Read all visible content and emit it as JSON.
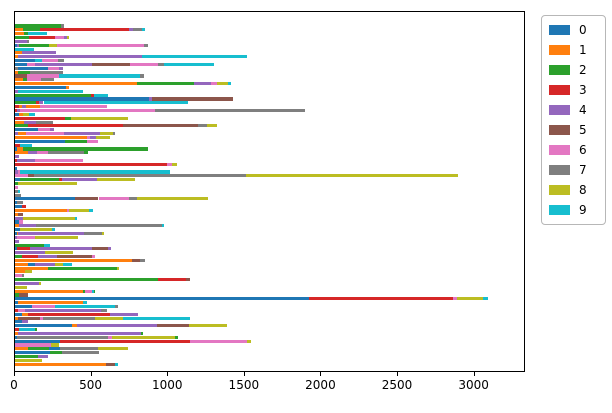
{
  "chart_data": {
    "type": "bar",
    "orientation": "horizontal",
    "stacked": true,
    "title": "",
    "xlabel": "",
    "ylabel": "",
    "grid": false,
    "xlim": [
      0,
      3335
    ],
    "x_ticks": [
      0,
      500,
      1000,
      1500,
      2000,
      2500,
      3000
    ],
    "legend": {
      "position": "outside-upper-right",
      "entries": [
        {
          "label": "0",
          "color": "#1f77b4"
        },
        {
          "label": "1",
          "color": "#ff7f0e"
        },
        {
          "label": "2",
          "color": "#2ca02c"
        },
        {
          "label": "3",
          "color": "#d62728"
        },
        {
          "label": "4",
          "color": "#9467bd"
        },
        {
          "label": "5",
          "color": "#8c564b"
        },
        {
          "label": "6",
          "color": "#e377c2"
        },
        {
          "label": "7",
          "color": "#7f7f7f"
        },
        {
          "label": "8",
          "color": "#bcbd22"
        },
        {
          "label": "9",
          "color": "#17becf"
        }
      ]
    },
    "bars_note": "89 horizontal stacked bars, top to bottom; each segment is [legend_series_index, value]",
    "bars": [
      [
        [
          2,
          297
        ],
        [
          7,
          20
        ]
      ],
      [
        [
          1,
          54
        ],
        [
          2,
          109
        ],
        [
          3,
          578
        ],
        [
          4,
          26
        ],
        [
          7,
          62
        ],
        [
          9,
          19
        ]
      ],
      [
        [
          1,
          60
        ],
        [
          2,
          28
        ],
        [
          9,
          120
        ]
      ],
      [
        [
          2,
          94
        ],
        [
          3,
          168
        ],
        [
          6,
          61
        ],
        [
          4,
          15
        ],
        [
          8,
          13
        ]
      ],
      [
        [
          4,
          80
        ],
        [
          7,
          11
        ]
      ],
      [
        [
          0,
          11
        ],
        [
          4,
          15
        ],
        [
          2,
          196
        ],
        [
          8,
          55
        ],
        [
          6,
          565
        ],
        [
          7,
          26
        ]
      ],
      [
        [
          9,
          124
        ]
      ],
      [
        [
          1,
          48
        ],
        [
          4,
          218
        ]
      ],
      [
        [
          1,
          20
        ],
        [
          4,
          806
        ],
        [
          9,
          689
        ]
      ],
      [
        [
          0,
          130
        ],
        [
          9,
          45
        ],
        [
          6,
          105
        ],
        [
          7,
          40
        ]
      ],
      [
        [
          0,
          80
        ],
        [
          6,
          50
        ],
        [
          4,
          370
        ],
        [
          5,
          250
        ],
        [
          6,
          185
        ],
        [
          7,
          35
        ],
        [
          9,
          330
        ]
      ],
      [
        [
          7,
          22
        ],
        [
          0,
          196
        ],
        [
          6,
          72
        ],
        [
          4,
          26
        ]
      ],
      [
        [
          1,
          22
        ],
        [
          2,
          76
        ],
        [
          7,
          218
        ]
      ],
      [
        [
          5,
          76
        ],
        [
          6,
          214
        ],
        [
          9,
          524
        ],
        [
          7,
          26
        ]
      ],
      [
        [
          1,
          50
        ],
        [
          2,
          31
        ],
        [
          6,
          87
        ],
        [
          7,
          87
        ]
      ],
      [
        [
          1,
          793
        ],
        [
          2,
          378
        ],
        [
          4,
          109
        ],
        [
          6,
          39
        ],
        [
          8,
          68
        ],
        [
          9,
          23
        ]
      ],
      [
        [
          0,
          334
        ],
        [
          1,
          17
        ]
      ],
      [
        [
          4,
          17
        ],
        [
          9,
          426
        ]
      ],
      [
        [
          2,
          498
        ],
        [
          3,
          15
        ],
        [
          9,
          94
        ]
      ],
      [
        [
          0,
          875
        ],
        [
          4,
          20
        ],
        [
          5,
          530
        ]
      ],
      [
        [
          2,
          140
        ],
        [
          3,
          18
        ],
        [
          4,
          28
        ],
        [
          9,
          945
        ]
      ],
      [
        [
          3,
          25
        ],
        [
          1,
          22
        ],
        [
          4,
          22
        ],
        [
          1,
          95
        ],
        [
          6,
          436
        ]
      ],
      [
        [
          3,
          12
        ],
        [
          4,
          18
        ],
        [
          6,
          885
        ],
        [
          7,
          975
        ]
      ],
      [
        [
          0,
          28
        ],
        [
          1,
          26
        ],
        [
          8,
          40
        ],
        [
          9,
          36
        ]
      ],
      [
        [
          3,
          325
        ],
        [
          2,
          38
        ],
        [
          8,
          375
        ]
      ],
      [
        [
          1,
          60
        ],
        [
          4,
          80
        ],
        [
          7,
          110
        ]
      ],
      [
        [
          2,
          85
        ],
        [
          3,
          620
        ],
        [
          5,
          490
        ],
        [
          7,
          60
        ],
        [
          8,
          66
        ]
      ],
      [
        [
          0,
          150
        ],
        [
          6,
          80
        ],
        [
          4,
          25
        ]
      ],
      [
        [
          4,
          18
        ],
        [
          1,
          55
        ],
        [
          6,
          250
        ],
        [
          4,
          230
        ],
        [
          8,
          85
        ],
        [
          7,
          17
        ]
      ],
      [
        [
          1,
          470
        ],
        [
          6,
          20
        ],
        [
          4,
          40
        ],
        [
          8,
          90
        ]
      ],
      [
        [
          0,
          327
        ],
        [
          2,
          143
        ],
        [
          6,
          70
        ]
      ],
      [
        [
          3,
          35
        ],
        [
          9,
          75
        ]
      ],
      [
        [
          0,
          15
        ],
        [
          1,
          40
        ],
        [
          2,
          815
        ]
      ],
      [
        [
          1,
          85
        ],
        [
          4,
          60
        ],
        [
          6,
          70
        ],
        [
          7,
          234
        ],
        [
          2,
          30
        ]
      ],
      [
        [
          4,
          28
        ]
      ],
      [
        [
          3,
          15
        ],
        [
          4,
          118
        ],
        [
          6,
          310
        ]
      ],
      [
        [
          3,
          992
        ],
        [
          6,
          33
        ],
        [
          8,
          34
        ]
      ],
      [
        [
          0,
          15
        ]
      ],
      [
        [
          4,
          20
        ],
        [
          6,
          15
        ],
        [
          9,
          974
        ]
      ],
      [
        [
          6,
          87
        ],
        [
          5,
          40
        ],
        [
          7,
          1380
        ],
        [
          8,
          1385
        ]
      ],
      [
        [
          0,
          30
        ],
        [
          2,
          260
        ],
        [
          3,
          15
        ],
        [
          4,
          230
        ],
        [
          8,
          250
        ]
      ],
      [
        [
          2,
          22
        ],
        [
          8,
          381
        ]
      ],
      [
        [
          6,
          22
        ]
      ],
      [
        [
          7,
          18
        ],
        [
          9,
          12
        ]
      ],
      [
        [
          7,
          40
        ]
      ],
      [
        [
          0,
          392
        ],
        [
          5,
          153
        ],
        [
          6,
          196
        ],
        [
          7,
          55
        ],
        [
          8,
          465
        ]
      ],
      [
        [
          0,
          10
        ],
        [
          7,
          40
        ]
      ],
      [
        [
          0,
          45
        ],
        [
          3,
          28
        ]
      ],
      [
        [
          1,
          338
        ],
        [
          6,
          15
        ],
        [
          8,
          131
        ],
        [
          9,
          28
        ]
      ],
      [
        [
          1,
          20
        ],
        [
          5,
          30
        ]
      ],
      [
        [
          4,
          54
        ],
        [
          8,
          338
        ],
        [
          9,
          15
        ]
      ],
      [
        [
          0,
          28
        ],
        [
          6,
          22
        ]
      ],
      [
        [
          1,
          28
        ],
        [
          4,
          109
        ],
        [
          7,
          823
        ],
        [
          9,
          15
        ]
      ],
      [
        [
          0,
          30
        ],
        [
          8,
          210
        ],
        [
          9,
          22
        ]
      ],
      [
        [
          0,
          12
        ],
        [
          1,
          10
        ],
        [
          4,
          428
        ],
        [
          7,
          116
        ],
        [
          8,
          18
        ]
      ],
      [
        [
          4,
          12
        ],
        [
          6,
          119
        ],
        [
          8,
          279
        ]
      ],
      [
        [
          4,
          28
        ]
      ],
      [
        [
          2,
          192
        ],
        [
          9,
          37
        ]
      ],
      [
        [
          0,
          10
        ],
        [
          3,
          90
        ],
        [
          4,
          402
        ],
        [
          5,
          108
        ],
        [
          4,
          16
        ]
      ],
      [
        [
          4,
          195
        ],
        [
          8,
          185
        ]
      ],
      [
        [
          2,
          44
        ],
        [
          3,
          108
        ],
        [
          4,
          121
        ],
        [
          5,
          229
        ],
        [
          6,
          21
        ]
      ],
      [
        [
          1,
          763
        ],
        [
          5,
          50
        ],
        [
          7,
          37
        ]
      ],
      [
        [
          1,
          88
        ],
        [
          0,
          44
        ],
        [
          4,
          129
        ],
        [
          8,
          55
        ],
        [
          9,
          55
        ]
      ],
      [
        [
          1,
          218
        ],
        [
          2,
          447
        ],
        [
          8,
          17
        ]
      ],
      [
        [
          1,
          65
        ],
        [
          8,
          45
        ]
      ],
      [
        [
          6,
          44
        ],
        [
          7,
          15
        ]
      ],
      [
        [
          2,
          934
        ],
        [
          3,
          185
        ],
        [
          5,
          26
        ]
      ],
      [
        [
          4,
          155
        ],
        [
          8,
          15
        ]
      ],
      [
        [
          8,
          77
        ]
      ],
      [
        [
          1,
          443
        ],
        [
          2,
          16
        ],
        [
          6,
          42
        ],
        [
          9,
          13
        ],
        [
          2,
          10
        ]
      ],
      [
        [
          2,
          28
        ],
        [
          5,
          60
        ]
      ],
      [
        [
          0,
          1917
        ],
        [
          3,
          941
        ],
        [
          6,
          26
        ],
        [
          8,
          170
        ],
        [
          9,
          36
        ]
      ],
      [
        [
          0,
          22
        ],
        [
          1,
          421
        ],
        [
          9,
          26
        ]
      ],
      [
        [
          0,
          109
        ],
        [
          6,
          153
        ],
        [
          9,
          392
        ],
        [
          7,
          21
        ]
      ],
      [
        [
          3,
          20
        ],
        [
          6,
          45
        ],
        [
          4,
          495
        ],
        [
          7,
          39
        ]
      ],
      [
        [
          0,
          44
        ],
        [
          1,
          43
        ],
        [
          3,
          534
        ],
        [
          4,
          184
        ]
      ],
      [
        [
          1,
          22
        ],
        [
          5,
          142
        ],
        [
          6,
          17
        ],
        [
          7,
          342
        ],
        [
          8,
          184
        ],
        [
          9,
          438
        ]
      ],
      [
        [
          0,
          45
        ],
        [
          4,
          37
        ]
      ],
      [
        [
          0,
          370
        ],
        [
          1,
          33
        ],
        [
          4,
          523
        ],
        [
          5,
          207
        ],
        [
          8,
          251
        ]
      ],
      [
        [
          3,
          28
        ],
        [
          9,
          103
        ],
        [
          2,
          15
        ]
      ],
      [
        [
          1,
          20
        ],
        [
          4,
          800
        ],
        [
          2,
          17
        ]
      ],
      [
        [
          0,
          15
        ],
        [
          7,
          595
        ],
        [
          6,
          22
        ],
        [
          8,
          414
        ],
        [
          2,
          20
        ]
      ],
      [
        [
          0,
          295
        ],
        [
          3,
          850
        ],
        [
          6,
          370
        ],
        [
          8,
          28
        ]
      ],
      [
        [
          6,
          235
        ],
        [
          8,
          55
        ]
      ],
      [
        [
          1,
          88
        ],
        [
          2,
          134
        ],
        [
          0,
          73
        ],
        [
          7,
          248
        ],
        [
          8,
          197
        ]
      ],
      [
        [
          0,
          230
        ],
        [
          2,
          76
        ],
        [
          7,
          240
        ]
      ],
      [
        [
          2,
          153
        ],
        [
          4,
          60
        ]
      ],
      [
        [
          8,
          175
        ]
      ],
      [
        [
          1,
          595
        ],
        [
          5,
          55
        ],
        [
          9,
          20
        ]
      ]
    ]
  }
}
